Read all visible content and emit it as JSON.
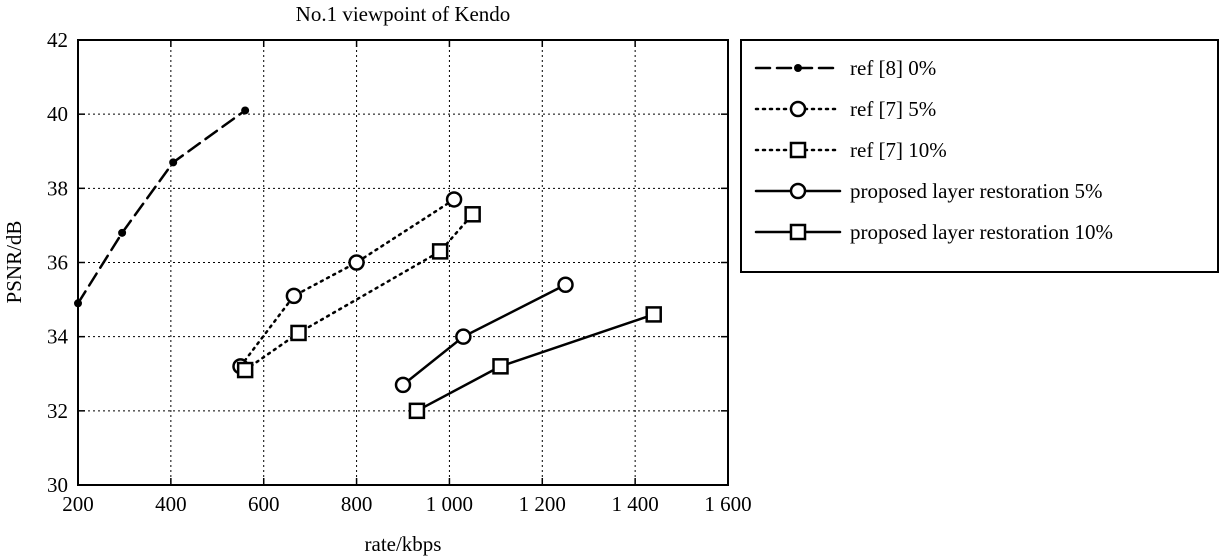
{
  "chart_data": {
    "type": "line",
    "title": "No.1 viewpoint of Kendo",
    "xlabel": "rate/kbps",
    "ylabel": "PSNR/dB",
    "xlim": [
      200,
      1600
    ],
    "ylim": [
      30,
      42
    ],
    "xticks": [
      200,
      400,
      600,
      800,
      1000,
      1200,
      1400,
      1600
    ],
    "xtick_labels": [
      "200",
      "400",
      "600",
      "800",
      "1 000",
      "1 200",
      "1 400",
      "1 600"
    ],
    "yticks": [
      30,
      32,
      34,
      36,
      38,
      40,
      42
    ],
    "ytick_labels": [
      "30",
      "32",
      "34",
      "36",
      "38",
      "40",
      "42"
    ],
    "grid": true,
    "legend_position": "outside-right",
    "series": [
      {
        "name": "ref [8] 0%",
        "line_style": "dashed",
        "marker": "dot",
        "x": [
          200,
          295,
          405,
          560
        ],
        "y": [
          34.9,
          36.8,
          38.7,
          40.1
        ]
      },
      {
        "name": "ref [7] 5%",
        "line_style": "dotted",
        "marker": "circle",
        "x": [
          550,
          665,
          800,
          1010
        ],
        "y": [
          33.2,
          35.1,
          36.0,
          37.7
        ]
      },
      {
        "name": "ref [7] 10%",
        "line_style": "dotted",
        "marker": "square",
        "x": [
          560,
          675,
          980,
          1050
        ],
        "y": [
          33.1,
          34.1,
          36.3,
          37.3
        ]
      },
      {
        "name": "proposed layer restoration 5%",
        "line_style": "solid",
        "marker": "circle",
        "x": [
          900,
          1030,
          1250
        ],
        "y": [
          32.7,
          34.0,
          35.4
        ]
      },
      {
        "name": "proposed layer restoration 10%",
        "line_style": "solid",
        "marker": "square",
        "x": [
          930,
          1110,
          1440
        ],
        "y": [
          32.0,
          33.2,
          34.6
        ]
      }
    ]
  }
}
